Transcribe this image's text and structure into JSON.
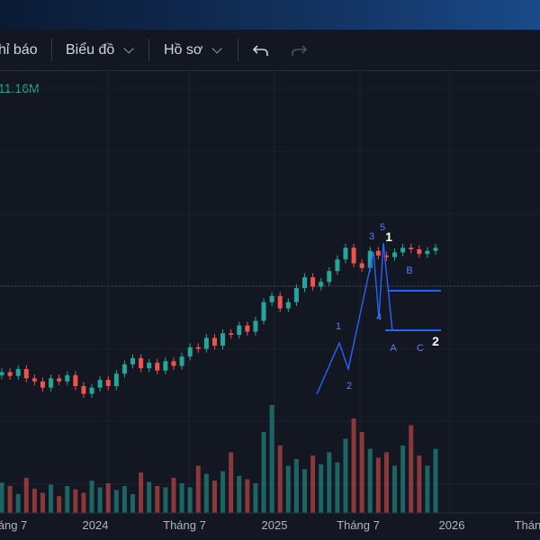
{
  "toolbar": {
    "indicators_label": "hỉ báo",
    "chart_label": "Biểu đồ",
    "profile_label": "Hồ sơ"
  },
  "volume_label": "11.16M",
  "colors": {
    "up": "#26a69a",
    "down": "#ef5350",
    "wave": "#2962ff",
    "bg": "#131722",
    "grid": "#1e222d"
  },
  "chart_data": {
    "type": "candlestick",
    "title": "",
    "x_ticks": [
      "áng 7",
      "2024",
      "Tháng 7",
      "2025",
      "Tháng 7",
      "2026",
      "Tháng"
    ],
    "wave_labels": [
      {
        "text": "1",
        "style": "minor"
      },
      {
        "text": "2",
        "style": "minor"
      },
      {
        "text": "3",
        "style": "minor"
      },
      {
        "text": "4",
        "style": "minor"
      },
      {
        "text": "5",
        "style": "minor"
      },
      {
        "text": "1",
        "style": "major"
      },
      {
        "text": "A",
        "style": "minor"
      },
      {
        "text": "B",
        "style": "minor"
      },
      {
        "text": "C",
        "style": "minor"
      },
      {
        "text": "2",
        "style": "major"
      }
    ],
    "close_series": [
      380,
      375,
      384,
      372,
      368,
      360,
      372,
      368,
      376,
      362,
      352,
      360,
      370,
      362,
      378,
      390,
      398,
      385,
      392,
      382,
      394,
      388,
      400,
      412,
      410,
      424,
      414,
      430,
      428,
      440,
      432,
      446,
      470,
      478,
      462,
      470,
      488,
      502,
      490,
      496,
      510,
      525,
      540,
      520,
      514,
      536,
      530,
      528,
      534,
      540,
      538,
      532,
      536,
      540
    ],
    "volume_series": [
      45,
      40,
      28,
      52,
      36,
      30,
      42,
      25,
      40,
      35,
      30,
      48,
      38,
      44,
      34,
      40,
      28,
      60,
      46,
      40,
      38,
      52,
      44,
      38,
      70,
      58,
      48,
      62,
      90,
      55,
      50,
      44,
      120,
      160,
      100,
      70,
      80,
      65,
      85,
      72,
      90,
      75,
      110,
      140,
      120,
      95,
      82,
      90,
      70,
      100,
      130,
      85,
      70,
      95
    ]
  }
}
